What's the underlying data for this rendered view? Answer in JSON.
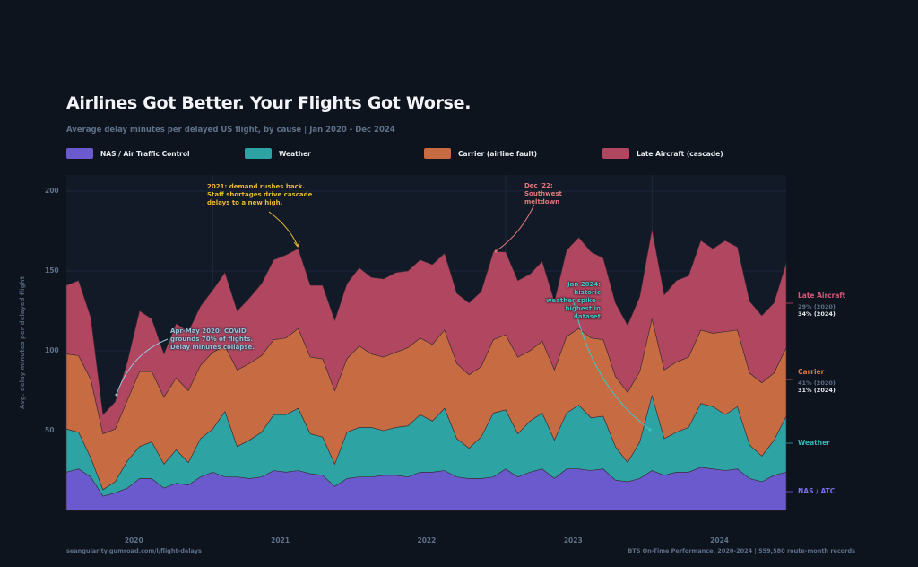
{
  "header": {
    "title": "Airlines Got Better. Your Flights Got Worse.",
    "subtitle": "Average delay minutes per delayed US flight, by cause  |  Jan 2020 - Dec 2024"
  },
  "legend": [
    {
      "label": "NAS / Air Traffic Control",
      "color": "#6a5acd"
    },
    {
      "label": "Weather",
      "color": "#2ea3a3"
    },
    {
      "label": "Carrier (airline fault)",
      "color": "#c76b42"
    },
    {
      "label": "Late Aircraft (cascade)",
      "color": "#b0465f"
    }
  ],
  "right_labels": {
    "late": {
      "label": "Late Aircraft",
      "pct2020": "29% (2020)",
      "pct2024": "34% (2024)",
      "color": "#d4587a"
    },
    "carrier": {
      "label": "Carrier",
      "pct2020": "41% (2020)",
      "pct2024": "31% (2024)",
      "color": "#d97a4a"
    },
    "weather": {
      "label": "Weather",
      "color": "#35b5b5"
    },
    "nas": {
      "label": "NAS / ATC",
      "color": "#7c6cf0"
    }
  },
  "annotations": {
    "covid": {
      "lines": [
        "Apr-May 2020: COVID",
        "grounds 70% of flights.",
        "Delay minutes collapse."
      ],
      "color": "#9cc4d8"
    },
    "demand": {
      "lines": [
        "2021: demand rushes back.",
        "Staff shortages drive cascade",
        "delays to a new high."
      ],
      "color": "#e8b830"
    },
    "southwest": {
      "lines": [
        "Dec '22:",
        "Southwest",
        "meltdown"
      ],
      "color": "#e07a7a"
    },
    "weather2024": {
      "lines": [
        "Jan 2024: historic",
        "weather spike -",
        "highest in dataset"
      ],
      "color": "#3cc8c8"
    }
  },
  "footer": {
    "left": "seangularity.gumroad.com/l/flight-delays",
    "right": "BTS On-Time Performance, 2020-2024  |  559,580 route-month records"
  },
  "chart_data": {
    "type": "area",
    "stacked": true,
    "x_start": "2020-01",
    "x_end": "2024-12",
    "x_frequency": "monthly",
    "x_tick_labels": [
      "2020",
      "2021",
      "2022",
      "2023",
      "2024"
    ],
    "ylabel": "Avg. delay minutes per delayed flight",
    "y_ticks": [
      50,
      100,
      150,
      200
    ],
    "ylim": [
      0,
      210
    ],
    "grid": true,
    "legend_placement": "top",
    "series": [
      {
        "name": "NAS / Air Traffic Control",
        "color": "#6a5acd",
        "values": [
          24,
          26,
          21,
          9,
          11,
          14,
          20,
          20,
          14,
          17,
          16,
          21,
          24,
          21,
          21,
          20,
          21,
          25,
          24,
          25,
          23,
          22,
          15,
          20,
          21,
          21,
          22,
          22,
          21,
          24,
          24,
          25,
          21,
          20,
          20,
          21,
          26,
          21,
          24,
          26,
          20,
          26,
          26,
          25,
          26,
          19,
          18,
          20,
          25,
          22,
          24,
          24,
          27,
          26,
          25,
          26,
          20,
          18,
          22,
          24
        ]
      },
      {
        "name": "Weather",
        "color": "#2ea3a3",
        "values": [
          27,
          23,
          12,
          4,
          7,
          17,
          20,
          23,
          15,
          21,
          14,
          24,
          27,
          41,
          19,
          24,
          28,
          35,
          36,
          39,
          25,
          24,
          14,
          29,
          31,
          31,
          28,
          30,
          32,
          36,
          32,
          39,
          24,
          19,
          26,
          40,
          37,
          27,
          32,
          35,
          24,
          35,
          40,
          33,
          33,
          21,
          12,
          23,
          47,
          23,
          25,
          28,
          40,
          39,
          35,
          39,
          21,
          16,
          22,
          35
        ]
      },
      {
        "name": "Carrier (airline fault)",
        "color": "#c76b42",
        "values": [
          47,
          48,
          49,
          35,
          33,
          38,
          47,
          44,
          42,
          45,
          45,
          46,
          48,
          41,
          48,
          48,
          48,
          47,
          48,
          50,
          48,
          49,
          46,
          46,
          51,
          46,
          46,
          47,
          49,
          48,
          48,
          49,
          47,
          46,
          44,
          46,
          47,
          48,
          44,
          45,
          44,
          48,
          48,
          50,
          48,
          44,
          44,
          44,
          48,
          43,
          44,
          44,
          46,
          46,
          52,
          48,
          45,
          46,
          42,
          43
        ]
      },
      {
        "name": "Late Aircraft (cascade)",
        "color": "#b0465f",
        "values": [
          43,
          47,
          39,
          12,
          17,
          24,
          38,
          33,
          27,
          34,
          37,
          37,
          39,
          46,
          37,
          41,
          45,
          50,
          52,
          50,
          45,
          46,
          44,
          47,
          49,
          48,
          49,
          50,
          48,
          49,
          50,
          48,
          44,
          45,
          47,
          55,
          52,
          48,
          48,
          50,
          43,
          54,
          57,
          54,
          51,
          46,
          42,
          47,
          56,
          47,
          51,
          51,
          56,
          53,
          57,
          52,
          45,
          42,
          44,
          53
        ]
      }
    ]
  }
}
